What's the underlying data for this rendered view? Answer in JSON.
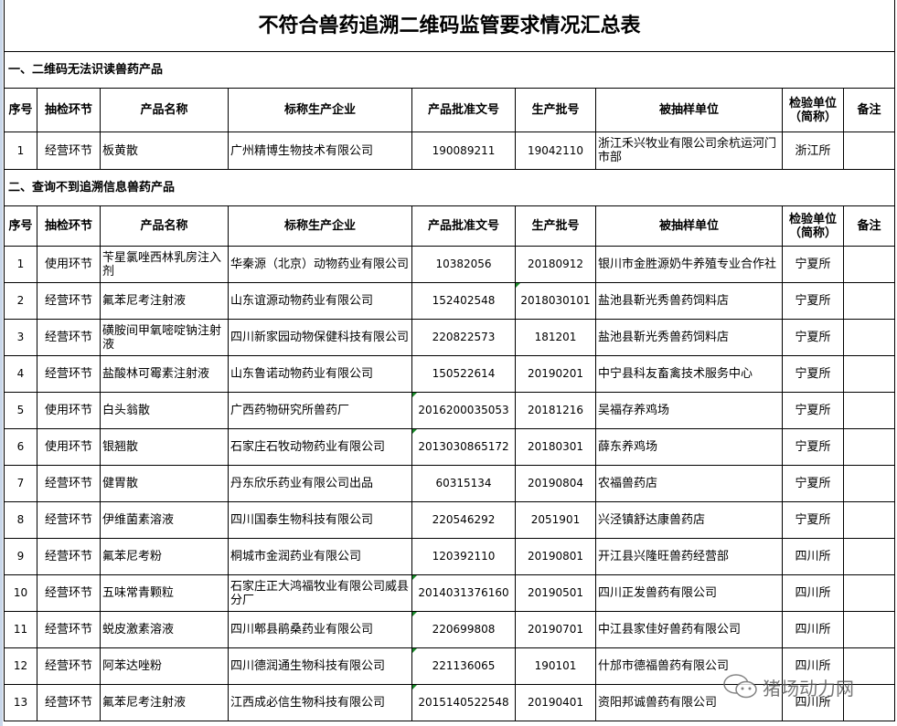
{
  "title": "不符合兽药追溯二维码监管要求情况汇总表",
  "section1": {
    "heading": "一、二维码无法识读兽药产品",
    "columns": [
      "序号",
      "抽检环节",
      "产品名称",
      "标称生产企业",
      "产品批准文号",
      "生产批号",
      "被抽样单位",
      "检验单位（简称）",
      "备注"
    ],
    "rows": [
      {
        "no": "1",
        "stage": "经营环节",
        "product": "板黄散",
        "maker": "广州精博生物技术有限公司",
        "approval": "190089211",
        "batch": "19042110",
        "sampled": "浙江禾兴牧业有限公司余杭运河门市部",
        "lab": "浙江所",
        "note": ""
      }
    ]
  },
  "section2": {
    "heading": "二、查询不到追溯信息兽药产品",
    "columns": [
      "序号",
      "抽检环节",
      "产品名称",
      "标称生产企业",
      "产品批准文号",
      "生产批号",
      "被抽样单位",
      "检验单位（简称）",
      "备注"
    ],
    "rows": [
      {
        "no": "1",
        "stage": "使用环节",
        "product": "苄星氯唑西林乳房注入剂",
        "maker": "华秦源（北京）动物药业有限公司",
        "approval": "10382056",
        "batch": "20180912",
        "sampled": "银川市金胜源奶牛养殖专业合作社",
        "lab": "宁夏所",
        "note": ""
      },
      {
        "no": "2",
        "stage": "经营环节",
        "product": "氟苯尼考注射液",
        "maker": "山东谊源动物药业有限公司",
        "approval": "152402548",
        "batch": "2018030101",
        "sampled": "盐池县靳光秀兽药饲料店",
        "lab": "宁夏所",
        "note": "",
        "batch_flag": true
      },
      {
        "no": "3",
        "stage": "经营环节",
        "product": "磺胺间甲氧嘧啶钠注射液",
        "maker": "四川新家园动物保健科技有限公司",
        "approval": "220822573",
        "batch": "181201",
        "sampled": "盐池县靳光秀兽药饲料店",
        "lab": "宁夏所",
        "note": ""
      },
      {
        "no": "4",
        "stage": "经营环节",
        "product": "盐酸林可霉素注射液",
        "maker": "山东鲁诺动物药业有限公司",
        "approval": "150522614",
        "batch": "20190201",
        "sampled": "中宁县科友畜禽技术服务中心",
        "lab": "宁夏所",
        "note": ""
      },
      {
        "no": "5",
        "stage": "使用环节",
        "product": "白头翁散",
        "maker": "广西药物研究所兽药厂",
        "approval": "2016200035053",
        "batch": "20181216",
        "sampled": "吴福存养鸡场",
        "lab": "宁夏所",
        "note": "",
        "approval_flag": true
      },
      {
        "no": "6",
        "stage": "使用环节",
        "product": "银翘散",
        "maker": "石家庄石牧动物药业有限公司",
        "approval": "2013030865172",
        "batch": "20180301",
        "sampled": "薛东养鸡场",
        "lab": "宁夏所",
        "note": "",
        "approval_flag": true
      },
      {
        "no": "7",
        "stage": "经营环节",
        "product": "健胃散",
        "maker": "丹东欣乐药业有限公司出品",
        "approval": "60315134",
        "batch": "20190804",
        "sampled": "农福兽药店",
        "lab": "宁夏所",
        "note": ""
      },
      {
        "no": "8",
        "stage": "经营环节",
        "product": "伊维菌素溶液",
        "maker": "四川国泰生物科技有限公司",
        "approval": "220546292",
        "batch": "2051901",
        "sampled": "兴泾镇舒达康兽药店",
        "lab": "宁夏所",
        "note": ""
      },
      {
        "no": "9",
        "stage": "经营环节",
        "product": "氟苯尼考粉",
        "maker": "桐城市金润药业有限公司",
        "approval": "120392110",
        "batch": "20190801",
        "sampled": "开江县兴隆旺兽药经营部",
        "lab": "四川所",
        "note": ""
      },
      {
        "no": "10",
        "stage": "经营环节",
        "product": "五味常青颗粒",
        "maker": "石家庄正大鸿福牧业有限公司威县分厂",
        "approval": "2014031376160",
        "batch": "20190501",
        "sampled": "四川正发兽药有限公司",
        "lab": "四川所",
        "note": "",
        "approval_flag": true
      },
      {
        "no": "11",
        "stage": "经营环节",
        "product": "蜕皮激素溶液",
        "maker": "四川郫县鹃桑药业有限公司",
        "approval": "220699808",
        "batch": "20190701",
        "sampled": "中江县家佳好兽药有限公司",
        "lab": "四川所",
        "note": "",
        "approval_flag": true
      },
      {
        "no": "12",
        "stage": "经营环节",
        "product": "阿苯达唑粉",
        "maker": "四川德润通生物科技有限公司",
        "approval": "221136065",
        "batch": "190101",
        "sampled": "什邡市德福兽药有限公司",
        "lab": "四川所",
        "note": "",
        "approval_flag": true
      },
      {
        "no": "13",
        "stage": "经营环节",
        "product": "氟苯尼考注射液",
        "maker": "江西成必信生物科技有限公司",
        "approval": "2015140522548",
        "batch": "20190401",
        "sampled": "资阳邦诚兽药有限公司",
        "lab": "四川所",
        "note": "",
        "approval_flag": true
      }
    ]
  },
  "watermark": {
    "text": "猪场动力网",
    "icon": "wechat-icon"
  },
  "colors": {
    "flag": "#1a8a2a",
    "border": "#000000"
  }
}
